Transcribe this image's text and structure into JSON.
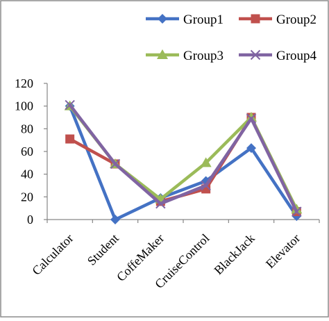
{
  "chart_data": {
    "type": "line",
    "categories": [
      "Calculator",
      "Student",
      "CoffeMaker",
      "CruiseControl",
      "BlackJack",
      "Elevator"
    ],
    "series": [
      {
        "name": "Group1",
        "values": [
          100,
          0,
          19,
          34,
          63,
          3
        ],
        "color": "#4472C4",
        "marker": "diamond"
      },
      {
        "name": "Group2",
        "values": [
          71,
          49,
          16,
          27,
          90,
          7
        ],
        "color": "#C0504D",
        "marker": "square"
      },
      {
        "name": "Group3",
        "values": [
          100,
          49,
          18,
          50,
          90,
          9
        ],
        "color": "#9BBB59",
        "marker": "triangle"
      },
      {
        "name": "Group4",
        "values": [
          101,
          49,
          14,
          30,
          89,
          7
        ],
        "color": "#8064A2",
        "marker": "x"
      }
    ],
    "ylim": [
      0,
      120
    ],
    "yticks": [
      "0",
      "20",
      "40",
      "60",
      "80",
      "100",
      "120"
    ],
    "grid": false,
    "legend_position": "top",
    "title": "",
    "xlabel": "",
    "ylabel": ""
  }
}
